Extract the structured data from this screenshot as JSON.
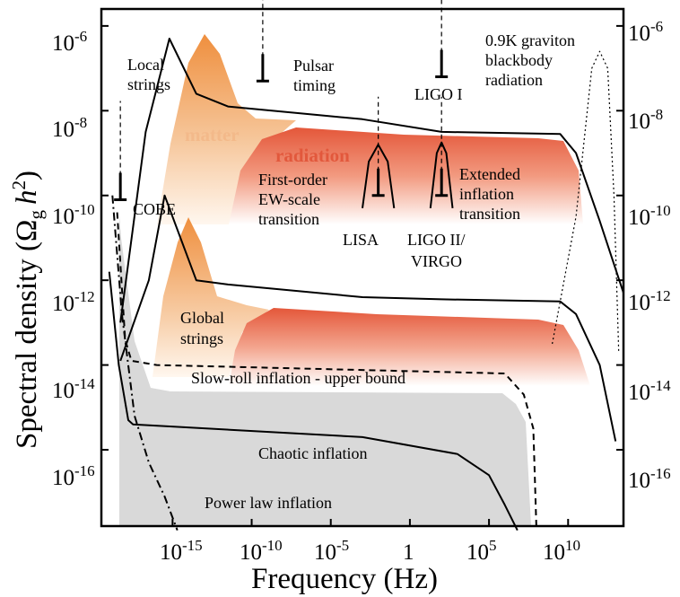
{
  "chart_data": {
    "type": "line",
    "xlabel": "Frequency (Hz)",
    "ylabel": "Spectral density (Ωg h²)",
    "ylabel_parts": {
      "main": "Spectral density (Ω",
      "sub": "g",
      "h": "h",
      "sup": "2",
      "close": ")"
    },
    "x_log10_range": [
      -19.5,
      13.5
    ],
    "y_log10_range": [
      -17.8,
      -5.6
    ],
    "scale": "log-log",
    "grid": false,
    "x_ticks": [
      {
        "exp": -15,
        "base": "10",
        "sup": "-15"
      },
      {
        "exp": -10,
        "base": "10",
        "sup": "-10"
      },
      {
        "exp": -5,
        "base": "10",
        "sup": "-5"
      },
      {
        "exp": 0,
        "base": "1",
        "sup": ""
      },
      {
        "exp": 5,
        "base": "10",
        "sup": "5"
      },
      {
        "exp": 10,
        "base": "10",
        "sup": "10"
      }
    ],
    "y_ticks": [
      {
        "exp": -6,
        "base": "10",
        "sup": "-6"
      },
      {
        "exp": -8,
        "base": "10",
        "sup": "-8"
      },
      {
        "exp": -10,
        "base": "10",
        "sup": "-10"
      },
      {
        "exp": -12,
        "base": "10",
        "sup": "-12"
      },
      {
        "exp": -14,
        "base": "10",
        "sup": "-14"
      },
      {
        "exp": -16,
        "base": "10",
        "sup": "-16"
      }
    ],
    "series": [
      {
        "name": "Local strings",
        "style": "solid",
        "points": [
          [
            -18.3,
            -13.0
          ],
          [
            -16.7,
            -8.5
          ],
          [
            -15.2,
            -6.3
          ],
          [
            -13.5,
            -7.6
          ],
          [
            -11.5,
            -7.9
          ],
          [
            -3.0,
            -8.2
          ],
          [
            2.0,
            -8.5
          ],
          [
            9.5,
            -8.55
          ],
          [
            10.5,
            -9.0
          ],
          [
            12.0,
            -10.6
          ],
          [
            13.5,
            -12.3
          ]
        ]
      },
      {
        "name": "Global strings",
        "style": "solid",
        "points": [
          [
            -18.3,
            -13.9
          ],
          [
            -16.5,
            -12.0
          ],
          [
            -15.5,
            -10.0
          ],
          [
            -13.5,
            -12.0
          ],
          [
            -11.5,
            -12.1
          ],
          [
            -3.0,
            -12.4
          ],
          [
            2.0,
            -12.45
          ],
          [
            9.5,
            -12.5
          ],
          [
            10.5,
            -12.8
          ],
          [
            12.0,
            -14.0
          ],
          [
            13.0,
            -15.8
          ]
        ]
      },
      {
        "name": "Slow-roll inflation - upper bound",
        "style": "dashed",
        "points": [
          [
            -18.5,
            -10.4
          ],
          [
            -18.0,
            -13.4
          ],
          [
            -17.6,
            -13.9
          ],
          [
            -16.0,
            -14.0
          ],
          [
            6.0,
            -14.2
          ],
          [
            7.2,
            -14.7
          ],
          [
            7.8,
            -15.5
          ],
          [
            8.0,
            -17.9
          ]
        ]
      },
      {
        "name": "Chaotic inflation",
        "style": "solid",
        "points": [
          [
            -19.0,
            -11.8
          ],
          [
            -18.4,
            -14.0
          ],
          [
            -17.8,
            -15.3
          ],
          [
            -17.5,
            -15.4
          ],
          [
            -3.0,
            -15.7
          ],
          [
            3.0,
            -16.1
          ],
          [
            5.0,
            -16.6
          ],
          [
            6.0,
            -17.3
          ],
          [
            6.8,
            -17.9
          ]
        ]
      },
      {
        "name": "Power law inflation",
        "style": "dashdot",
        "points": [
          [
            -18.8,
            -10.0
          ],
          [
            -18.2,
            -12.8
          ],
          [
            -17.4,
            -15.2
          ],
          [
            -16.5,
            -16.3
          ],
          [
            -15.5,
            -17.1
          ],
          [
            -14.7,
            -17.9
          ]
        ]
      },
      {
        "name": "0.9K graviton blackbody radiation",
        "style": "dotted",
        "points": [
          [
            9.0,
            -13.5
          ],
          [
            10.5,
            -10.5
          ],
          [
            11.5,
            -7.0
          ],
          [
            12.0,
            -6.6
          ],
          [
            12.5,
            -7.0
          ],
          [
            12.9,
            -10.0
          ],
          [
            13.2,
            -13.7
          ]
        ]
      },
      {
        "name": "First-order EW-scale transition",
        "style": "solid",
        "points": [
          [
            -3.0,
            -10.3
          ],
          [
            -2.6,
            -9.2
          ],
          [
            -2.0,
            -8.8
          ],
          [
            -1.4,
            -9.2
          ],
          [
            -1.0,
            -10.3
          ]
        ]
      },
      {
        "name": "Extended inflation transition",
        "style": "solid",
        "points": [
          [
            1.3,
            -10.3
          ],
          [
            1.7,
            -9.0
          ],
          [
            2.0,
            -8.75
          ],
          [
            2.3,
            -9.0
          ],
          [
            2.7,
            -10.3
          ]
        ]
      }
    ],
    "detector_limits": [
      {
        "name": "COBE",
        "x": -18.3,
        "y": -10.1
      },
      {
        "name": "Pulsar timing",
        "x": -9.3,
        "y": -7.3
      },
      {
        "name": "LIGO I",
        "x": 2.0,
        "y": -7.2
      },
      {
        "name": "LISA",
        "x": -2.0,
        "y": -10.0
      },
      {
        "name": "LIGO II/ VIRGO",
        "x": 2.0,
        "y": -10.0
      }
    ],
    "regions": [
      "matter",
      "radiation"
    ],
    "annotations": {
      "local_strings": [
        "Local",
        "strings"
      ],
      "pulsar": [
        "Pulsar",
        "timing"
      ],
      "ligo1": "LIGO I",
      "graviton": [
        "0.9K graviton",
        "blackbody",
        "radiation"
      ],
      "matter": "matter",
      "radiation": "radiation",
      "cobe": "COBE",
      "ew": [
        "First-order",
        "EW-scale",
        "transition"
      ],
      "extended": [
        "Extended",
        "inflation",
        "transition"
      ],
      "lisa": "LISA",
      "ligo2": [
        "LIGO II/",
        "VIRGO"
      ],
      "global_strings": [
        "Global",
        "strings"
      ],
      "slow_roll": "Slow-roll inflation - upper bound",
      "chaotic": "Chaotic inflation",
      "power_law": "Power law inflation"
    }
  }
}
